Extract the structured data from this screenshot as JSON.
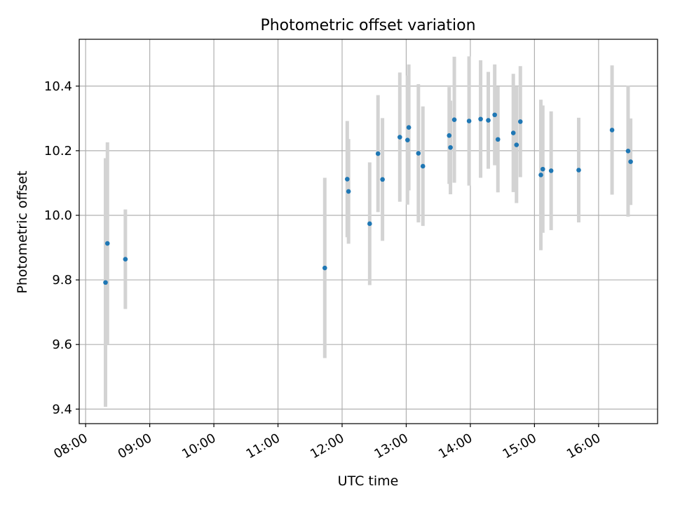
{
  "chart_data": {
    "type": "scatter",
    "title": "Photometric offset variation",
    "xlabel": "UTC time",
    "ylabel": "Photometric offset",
    "xlim": [
      7.9,
      16.92
    ],
    "ylim": [
      9.355,
      10.545
    ],
    "grid": true,
    "x_ticks": [
      {
        "value": 8,
        "label": "08:00"
      },
      {
        "value": 9,
        "label": "09:00"
      },
      {
        "value": 10,
        "label": "10:00"
      },
      {
        "value": 11,
        "label": "11:00"
      },
      {
        "value": 12,
        "label": "12:00"
      },
      {
        "value": 13,
        "label": "13:00"
      },
      {
        "value": 14,
        "label": "14:00"
      },
      {
        "value": 15,
        "label": "15:00"
      },
      {
        "value": 16,
        "label": "16:00"
      }
    ],
    "y_ticks": [
      {
        "value": 9.4,
        "label": "9.4"
      },
      {
        "value": 9.6,
        "label": "9.6"
      },
      {
        "value": 9.8,
        "label": "9.8"
      },
      {
        "value": 10.0,
        "label": "10.0"
      },
      {
        "value": 10.2,
        "label": "10.2"
      },
      {
        "value": 10.4,
        "label": "10.4"
      }
    ],
    "colors": {
      "point": "#1f77b4",
      "errorbar": "#d3d3d3",
      "grid": "#b0b0b0",
      "axes": "#000000"
    },
    "points": [
      {
        "x": 8.31,
        "y": 9.792,
        "err": 0.385
      },
      {
        "x": 8.34,
        "y": 9.913,
        "err": 0.313
      },
      {
        "x": 8.62,
        "y": 9.864,
        "err": 0.154
      },
      {
        "x": 11.73,
        "y": 9.837,
        "err": 0.279
      },
      {
        "x": 12.08,
        "y": 10.112,
        "err": 0.18
      },
      {
        "x": 12.1,
        "y": 10.074,
        "err": 0.162
      },
      {
        "x": 12.43,
        "y": 9.974,
        "err": 0.19
      },
      {
        "x": 12.56,
        "y": 10.191,
        "err": 0.181
      },
      {
        "x": 12.63,
        "y": 10.111,
        "err": 0.19
      },
      {
        "x": 12.9,
        "y": 10.242,
        "err": 0.2
      },
      {
        "x": 13.02,
        "y": 10.233,
        "err": 0.2
      },
      {
        "x": 13.04,
        "y": 10.272,
        "err": 0.195
      },
      {
        "x": 13.19,
        "y": 10.192,
        "err": 0.214
      },
      {
        "x": 13.26,
        "y": 10.152,
        "err": 0.185
      },
      {
        "x": 13.67,
        "y": 10.247,
        "err": 0.15
      },
      {
        "x": 13.69,
        "y": 10.21,
        "err": 0.145
      },
      {
        "x": 13.75,
        "y": 10.296,
        "err": 0.195
      },
      {
        "x": 13.98,
        "y": 10.292,
        "err": 0.2
      },
      {
        "x": 14.16,
        "y": 10.298,
        "err": 0.182
      },
      {
        "x": 14.28,
        "y": 10.294,
        "err": 0.15
      },
      {
        "x": 14.38,
        "y": 10.311,
        "err": 0.156
      },
      {
        "x": 14.43,
        "y": 10.235,
        "err": 0.164
      },
      {
        "x": 14.67,
        "y": 10.255,
        "err": 0.183
      },
      {
        "x": 14.72,
        "y": 10.218,
        "err": 0.18
      },
      {
        "x": 14.78,
        "y": 10.29,
        "err": 0.172
      },
      {
        "x": 15.1,
        "y": 10.125,
        "err": 0.233
      },
      {
        "x": 15.13,
        "y": 10.143,
        "err": 0.197
      },
      {
        "x": 15.26,
        "y": 10.138,
        "err": 0.184
      },
      {
        "x": 15.69,
        "y": 10.14,
        "err": 0.162
      },
      {
        "x": 16.21,
        "y": 10.264,
        "err": 0.2
      },
      {
        "x": 16.46,
        "y": 10.199,
        "err": 0.203
      },
      {
        "x": 16.5,
        "y": 10.166,
        "err": 0.134
      }
    ]
  }
}
